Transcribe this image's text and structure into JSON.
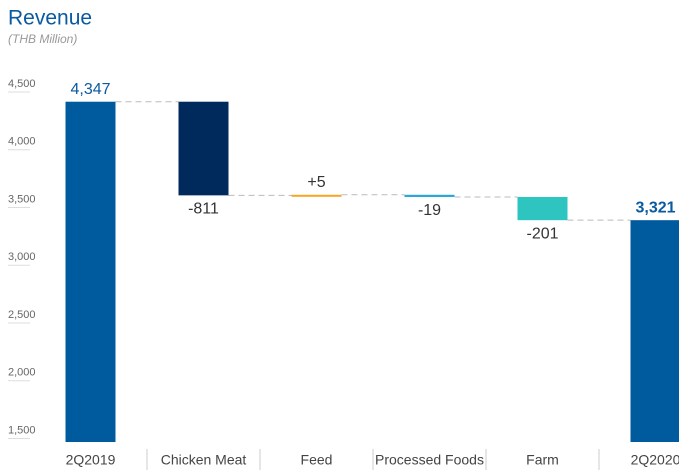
{
  "chart_data": {
    "type": "waterfall",
    "title": "Revenue",
    "subtitle": "(THB Million)",
    "categories": [
      "2Q2019",
      "Chicken Meat",
      "Feed",
      "Processed Foods",
      "Farm",
      "2Q2020"
    ],
    "values": [
      4347,
      -811,
      5,
      -19,
      -201,
      3321
    ],
    "value_labels": [
      "4,347",
      "-811",
      "+5",
      "-19",
      "-201",
      "3,321"
    ],
    "measure": [
      "absolute",
      "relative",
      "relative",
      "relative",
      "relative",
      "total"
    ],
    "colors": [
      "#005a9e",
      "#002a5c",
      "#f5a623",
      "#29a8d8",
      "#2ec4c0",
      "#005a9e"
    ],
    "ylim": [
      1400,
      4600
    ],
    "yticks": [
      {
        "value": 1500,
        "label": "1,500"
      },
      {
        "value": 2000,
        "label": "2,000"
      },
      {
        "value": 2500,
        "label": "2,500"
      },
      {
        "value": 3000,
        "label": "3,000"
      },
      {
        "value": 3500,
        "label": "3,500"
      },
      {
        "value": 4000,
        "label": "4,000"
      },
      {
        "value": 4500,
        "label": "4,500"
      }
    ],
    "grid": false
  }
}
